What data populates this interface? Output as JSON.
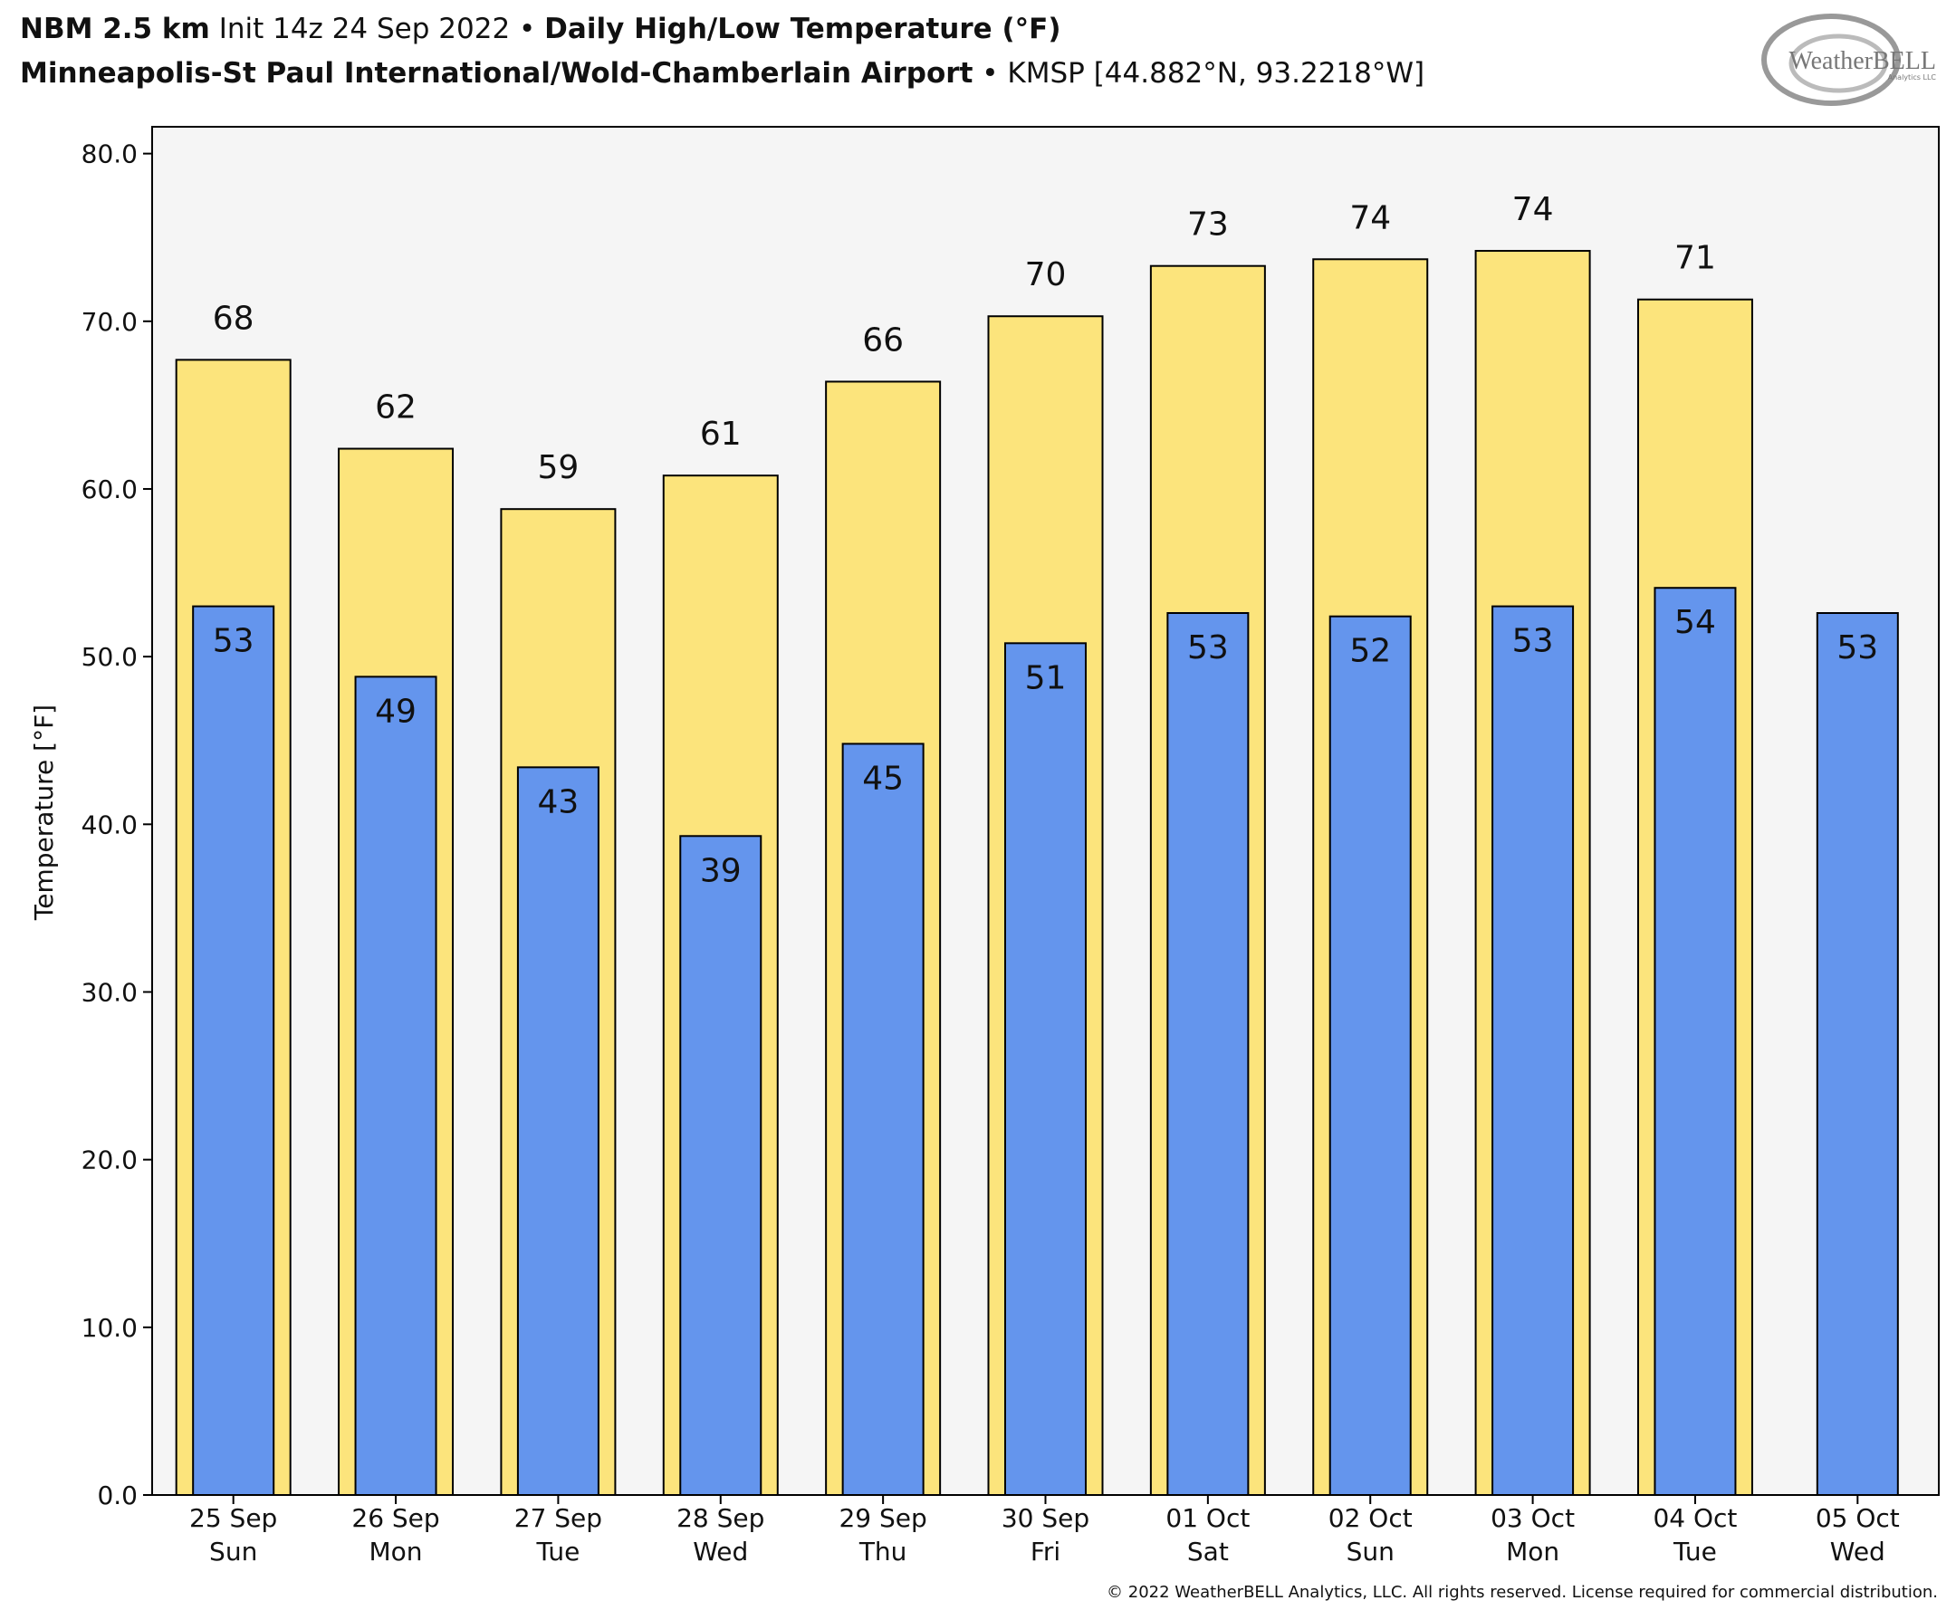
{
  "chart_data": {
    "type": "bar",
    "title": {
      "model": "NBM 2.5 km",
      "init": "Init 14z 24 Sep 2022",
      "product": "Daily High/Low Temperature (°F)",
      "station": "Minneapolis-St Paul International/Wold-Chamberlain Airport",
      "location": "KMSP [44.882°N, 93.2218°W]"
    },
    "logo": {
      "name": "WeatherBELL",
      "sub": "Analytics LLC"
    },
    "y_label": "Temperature [°F]",
    "footer": "© 2022 WeatherBELL Analytics, LLC. All rights reserved. License required for commercial distribution.",
    "categories": [
      [
        "25 Sep",
        "Sun"
      ],
      [
        "26 Sep",
        "Mon"
      ],
      [
        "27 Sep",
        "Tue"
      ],
      [
        "28 Sep",
        "Wed"
      ],
      [
        "29 Sep",
        "Thu"
      ],
      [
        "30 Sep",
        "Fri"
      ],
      [
        "01 Oct",
        "Sat"
      ],
      [
        "02 Oct",
        "Sun"
      ],
      [
        "03 Oct",
        "Mon"
      ],
      [
        "04 Oct",
        "Tue"
      ],
      [
        "05 Oct",
        "Wed"
      ]
    ],
    "series": [
      {
        "color": "#fce47c",
        "values": [
          67.7,
          62.4,
          58.8,
          60.8,
          66.4,
          70.3,
          73.3,
          73.7,
          74.2,
          71.3,
          null
        ],
        "value_labels": [
          "68",
          "62",
          "59",
          "61",
          "66",
          "70",
          "73",
          "74",
          "74",
          "71",
          null
        ]
      },
      {
        "color": "#6495ed",
        "values": [
          53.0,
          48.8,
          43.4,
          39.3,
          44.8,
          50.8,
          52.6,
          52.4,
          53.0,
          54.1,
          52.6
        ],
        "value_labels": [
          "53",
          "49",
          "43",
          "39",
          "45",
          "51",
          "53",
          "52",
          "53",
          "54",
          "53"
        ]
      }
    ],
    "ylim": [
      0,
      81.6
    ],
    "yticks": [
      {
        "value": 0,
        "label": "0.0"
      },
      {
        "value": 10,
        "label": "10.0"
      },
      {
        "value": 20,
        "label": "20.0"
      },
      {
        "value": 30,
        "label": "30.0"
      },
      {
        "value": 40,
        "label": "40.0"
      },
      {
        "value": 50,
        "label": "50.0"
      },
      {
        "value": 60,
        "label": "60.0"
      },
      {
        "value": 70,
        "label": "70.0"
      },
      {
        "value": 80,
        "label": "80.0"
      }
    ],
    "background": "#f5f5f5"
  }
}
